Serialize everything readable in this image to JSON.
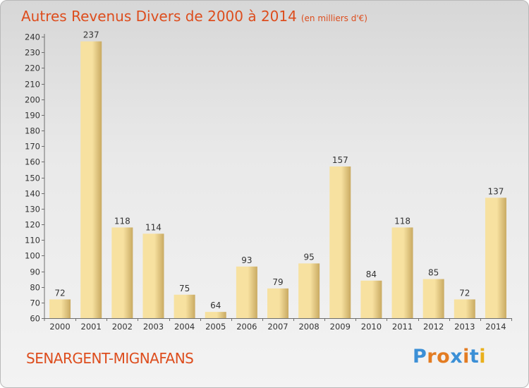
{
  "header": {
    "title": "Autres Revenus Divers de 2000 à 2014",
    "subtitle": "(en milliers d'€)"
  },
  "footer": {
    "place": "SENARGENT-MIGNAFANS",
    "logo": "Proxiti"
  },
  "colors": {
    "accent": "#dd4d1d",
    "bar_light": "#f7e1a0",
    "bar_dark": "#c9aa62",
    "logo_letters": [
      "#3b8fd6",
      "#e37c22",
      "#e37c22",
      "#3b8fd6",
      "#e37c22",
      "#3b8fd6",
      "#e9b01c"
    ]
  },
  "chart_data": {
    "type": "bar",
    "categories": [
      "2000",
      "2001",
      "2002",
      "2003",
      "2004",
      "2005",
      "2006",
      "2007",
      "2008",
      "2009",
      "2010",
      "2011",
      "2012",
      "2013",
      "2014"
    ],
    "values": [
      72,
      237,
      118,
      114,
      75,
      64,
      93,
      79,
      95,
      157,
      84,
      118,
      85,
      72,
      137
    ],
    "title": "Autres Revenus Divers de 2000 à 2014",
    "ylim": [
      60,
      240
    ],
    "yticks": [
      60,
      70,
      80,
      90,
      100,
      110,
      120,
      130,
      140,
      150,
      160,
      170,
      180,
      190,
      200,
      210,
      220,
      230,
      240
    ],
    "grid": false,
    "data_labels": true
  }
}
